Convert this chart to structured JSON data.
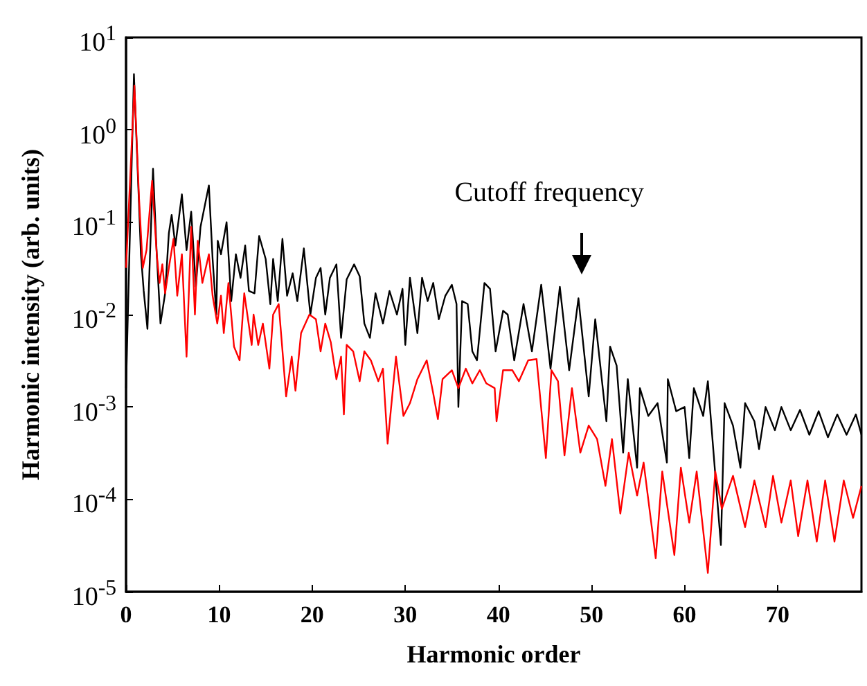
{
  "chart_data": {
    "type": "line",
    "xlabel": "Harmonic order",
    "ylabel": "Harmonic intensity (arb. units)",
    "log": "y",
    "marker": "none",
    "line_style": "solid",
    "grid": false,
    "xlim": [
      0,
      79
    ],
    "xticks": [
      0,
      10,
      20,
      30,
      40,
      50,
      60,
      70
    ],
    "ylim": [
      1e-05,
      10
    ],
    "yticks": [
      {
        "value": 1e-05,
        "label": "10$^{-5}$"
      },
      {
        "value": 0.0001,
        "label": "10$^{-4}$"
      },
      {
        "value": 0.001,
        "label": "10$^{-3}$"
      },
      {
        "value": 0.01,
        "label": "10$^{-2}$"
      },
      {
        "value": 0.1,
        "label": "10$^{-1}$"
      },
      {
        "value": 1,
        "label": "10$^{0}$"
      },
      {
        "value": 10,
        "label": "10$^{1}$"
      }
    ],
    "annotations": [
      "Cutoff frequency"
    ],
    "series": [
      {
        "color": "#000000",
        "x": [
          0,
          0.85,
          1.6,
          1.9,
          2.3,
          2.9,
          3.3,
          3.7,
          4.2,
          4.6,
          4.9,
          5.3,
          6.0,
          6.5,
          7.0,
          7.5,
          8.0,
          8.9,
          9.3,
          9.7,
          9.85,
          10.2,
          10.8,
          11.3,
          11.8,
          12.3,
          12.8,
          13.2,
          13.8,
          14.3,
          15.0,
          15.5,
          15.8,
          16.3,
          16.8,
          17.3,
          17.9,
          18.4,
          19.1,
          19.8,
          20.4,
          20.9,
          21.4,
          21.9,
          22.6,
          23.1,
          23.7,
          24.5,
          25.1,
          25.6,
          26.2,
          26.8,
          27.6,
          28.3,
          29.1,
          29.7,
          30.0,
          30.5,
          31.3,
          31.8,
          32.4,
          33.0,
          33.6,
          34.3,
          35.0,
          35.5,
          35.7,
          36.1,
          36.7,
          37.2,
          37.7,
          38.5,
          39.1,
          39.7,
          40.5,
          41.0,
          41.7,
          42.7,
          43.6,
          44.6,
          45.6,
          46.6,
          47.6,
          48.6,
          49.7,
          50.4,
          51.6,
          52.0,
          52.7,
          53.4,
          53.9,
          54.9,
          55.2,
          56.1,
          57.1,
          58.1,
          58.2,
          59.1,
          60.0,
          60.5,
          61.0,
          62.0,
          62.5,
          63.9,
          64.3,
          65.2,
          66.0,
          66.5,
          67.5,
          68.0,
          68.7,
          69.7,
          70.4,
          71.4,
          72.4,
          73.4,
          74.4,
          75.4,
          76.4,
          77.4,
          78.4,
          79.0
        ],
        "values": [
          0.0016,
          4,
          0.045,
          0.018,
          0.007,
          0.38,
          0.045,
          0.008,
          0.017,
          0.076,
          0.12,
          0.056,
          0.2,
          0.05,
          0.13,
          0.02,
          0.089,
          0.25,
          0.04,
          0.01,
          0.063,
          0.045,
          0.1,
          0.014,
          0.045,
          0.025,
          0.056,
          0.018,
          0.017,
          0.071,
          0.04,
          0.013,
          0.04,
          0.014,
          0.066,
          0.016,
          0.028,
          0.014,
          0.052,
          0.01,
          0.025,
          0.032,
          0.01,
          0.025,
          0.035,
          0.0056,
          0.024,
          0.035,
          0.026,
          0.008,
          0.0056,
          0.017,
          0.008,
          0.018,
          0.01,
          0.019,
          0.0047,
          0.025,
          0.0063,
          0.025,
          0.014,
          0.022,
          0.0089,
          0.016,
          0.021,
          0.013,
          0.001,
          0.014,
          0.013,
          0.004,
          0.0032,
          0.022,
          0.019,
          0.004,
          0.011,
          0.01,
          0.0032,
          0.013,
          0.004,
          0.021,
          0.0026,
          0.02,
          0.0025,
          0.015,
          0.0013,
          0.0089,
          0.0007,
          0.0045,
          0.0028,
          0.00032,
          0.002,
          0.00022,
          0.0016,
          0.0008,
          0.0011,
          0.00025,
          0.002,
          0.0009,
          0.001,
          0.00028,
          0.0016,
          0.0008,
          0.0019,
          3.2e-05,
          0.0011,
          0.00063,
          0.00022,
          0.0011,
          0.0007,
          0.00035,
          0.001,
          0.00056,
          0.001,
          0.00056,
          0.00093,
          0.0005,
          0.0009,
          0.00047,
          0.00083,
          0.0005,
          0.00083,
          0.0005
        ]
      },
      {
        "color": "#ff0000",
        "x": [
          0,
          0.9,
          1.4,
          1.8,
          2.2,
          2.8,
          3.3,
          3.6,
          3.9,
          4.2,
          4.6,
          5.1,
          5.5,
          6.0,
          6.5,
          7.0,
          7.4,
          7.7,
          8.2,
          8.9,
          9.3,
          9.8,
          10.2,
          10.5,
          11.0,
          11.6,
          12.2,
          12.7,
          13.5,
          13.7,
          14.2,
          14.7,
          15.4,
          15.8,
          16.4,
          17.2,
          17.8,
          18.2,
          18.8,
          19.7,
          20.4,
          20.9,
          21.4,
          22.0,
          22.6,
          23.1,
          23.4,
          23.7,
          24.4,
          25.1,
          25.6,
          26.3,
          27.1,
          27.6,
          28.1,
          29.0,
          29.8,
          30.5,
          31.3,
          32.3,
          33.0,
          33.5,
          34.0,
          35.0,
          35.7,
          36.5,
          37.2,
          38.0,
          38.7,
          39.6,
          39.8,
          40.5,
          41.5,
          42.2,
          43.2,
          44.1,
          45.1,
          45.7,
          46.4,
          47.1,
          47.9,
          48.8,
          49.7,
          50.6,
          51.5,
          52.2,
          53.1,
          54.0,
          54.9,
          55.6,
          56.9,
          57.6,
          58.9,
          59.6,
          60.5,
          61.3,
          62.5,
          63.3,
          64.0,
          65.2,
          66.5,
          67.5,
          68.7,
          69.5,
          70.4,
          71.4,
          72.2,
          73.2,
          74.2,
          75.1,
          76.1,
          77.1,
          78.1,
          79.0
        ],
        "values": [
          0.032,
          3,
          0.18,
          0.032,
          0.05,
          0.28,
          0.045,
          0.022,
          0.035,
          0.017,
          0.032,
          0.066,
          0.016,
          0.045,
          0.0035,
          0.089,
          0.01,
          0.063,
          0.022,
          0.045,
          0.016,
          0.008,
          0.016,
          0.0063,
          0.022,
          0.0045,
          0.0032,
          0.017,
          0.0047,
          0.01,
          0.0047,
          0.008,
          0.0026,
          0.01,
          0.013,
          0.0013,
          0.0035,
          0.0015,
          0.0063,
          0.01,
          0.0089,
          0.004,
          0.008,
          0.005,
          0.002,
          0.0035,
          0.00083,
          0.0047,
          0.004,
          0.0019,
          0.004,
          0.0032,
          0.0019,
          0.0026,
          0.0004,
          0.0035,
          0.0008,
          0.0011,
          0.002,
          0.0032,
          0.0014,
          0.00074,
          0.002,
          0.0025,
          0.0016,
          0.0026,
          0.0018,
          0.0025,
          0.0018,
          0.0016,
          0.0007,
          0.0025,
          0.0025,
          0.0019,
          0.0032,
          0.0033,
          0.00028,
          0.0025,
          0.0019,
          0.0003,
          0.0016,
          0.00032,
          0.00063,
          0.00045,
          0.00014,
          0.00045,
          7e-05,
          0.00032,
          0.00011,
          0.00025,
          2.3e-05,
          0.0002,
          2.5e-05,
          0.00022,
          5.6e-05,
          0.0002,
          1.6e-05,
          0.0002,
          7.9e-05,
          0.00018,
          5e-05,
          0.00016,
          5e-05,
          0.00018,
          5.6e-05,
          0.00016,
          4e-05,
          0.00016,
          3.5e-05,
          0.00016,
          3.5e-05,
          0.00016,
          6.3e-05,
          0.00014
        ]
      }
    ]
  }
}
